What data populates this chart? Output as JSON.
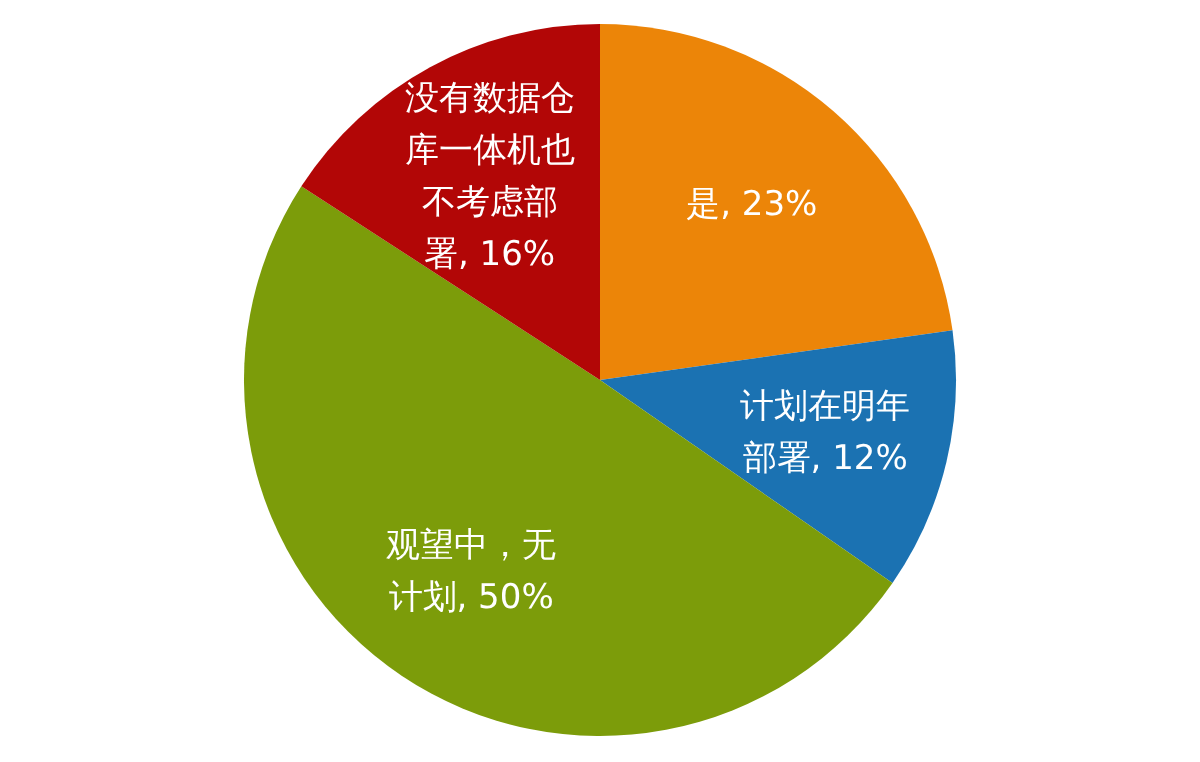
{
  "chart_data": {
    "type": "pie",
    "categories": [
      "是",
      "计划在明年部署",
      "观望中，无计划",
      "没有数据仓库一体机也不考虑部署"
    ],
    "values": [
      23,
      12,
      50,
      16
    ],
    "colors": [
      "#ec8508",
      "#1b72b2",
      "#7c9c0a",
      "#b20606"
    ],
    "value_labels": [
      ", 23%",
      ", 12%",
      ", 50%",
      ", 16%"
    ]
  }
}
